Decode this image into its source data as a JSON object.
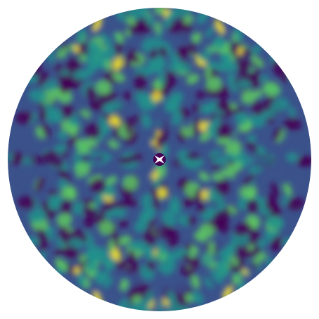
{
  "figure": {
    "type": "polar-heatmap",
    "colormap": [
      "#440154",
      "#3b528b",
      "#21918c",
      "#5ec962",
      "#fde725"
    ],
    "background": "#ffffff",
    "center_color": "#ffffff"
  }
}
